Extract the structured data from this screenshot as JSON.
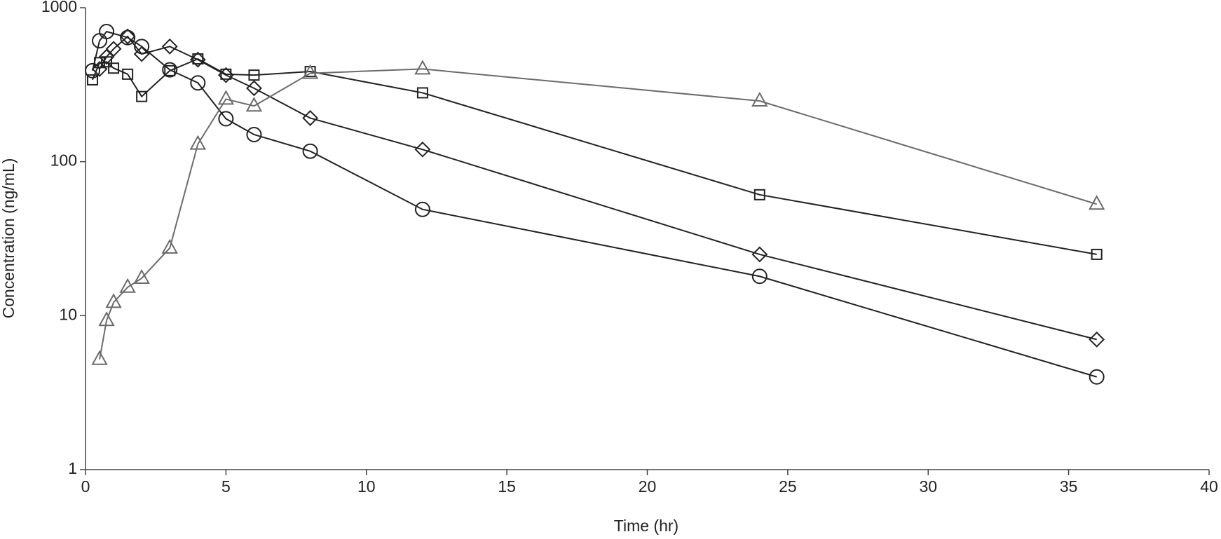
{
  "chart_data": {
    "type": "line",
    "xlabel": "Time (hr)",
    "ylabel": "Concentration (ng/mL)",
    "xlim": [
      0,
      40
    ],
    "xticks": [
      0,
      5,
      10,
      15,
      20,
      25,
      30,
      35,
      40
    ],
    "ylim": [
      1,
      1000
    ],
    "yticks": [
      1,
      10,
      100,
      1000
    ],
    "log_y": true,
    "grid": false,
    "series": [
      {
        "color": "#222222",
        "marker": "circle",
        "x": [
          0.25,
          0.5,
          0.75,
          1.5,
          2,
          3,
          4,
          5,
          6,
          8,
          12,
          24,
          36
        ],
        "values": [
          390,
          610,
          700,
          640,
          560,
          395,
          325,
          190,
          150,
          117,
          49,
          18,
          4
        ]
      },
      {
        "color": "#222222",
        "marker": "square",
        "x": [
          0.25,
          0.5,
          0.75,
          1,
          1.5,
          2,
          3,
          4,
          5,
          6,
          8,
          12,
          24,
          36
        ],
        "values": [
          340,
          440,
          445,
          405,
          370,
          265,
          390,
          465,
          370,
          365,
          385,
          280,
          61,
          25
        ]
      },
      {
        "color": "#222222",
        "marker": "diamond",
        "x": [
          0.5,
          0.75,
          1,
          1.5,
          2,
          3,
          4,
          5,
          6,
          8,
          12,
          24,
          36
        ],
        "values": [
          400,
          480,
          540,
          650,
          500,
          560,
          460,
          365,
          300,
          192,
          120,
          25,
          7
        ]
      },
      {
        "color": "#6b6b6b",
        "marker": "triangle",
        "x": [
          0.5,
          0.75,
          1,
          1.5,
          2,
          3,
          4,
          5,
          6,
          8,
          12,
          24,
          36
        ],
        "values": [
          5.2,
          9.3,
          12.2,
          15.3,
          17.5,
          27.5,
          130,
          255,
          230,
          375,
          400,
          248,
          53
        ]
      }
    ]
  }
}
